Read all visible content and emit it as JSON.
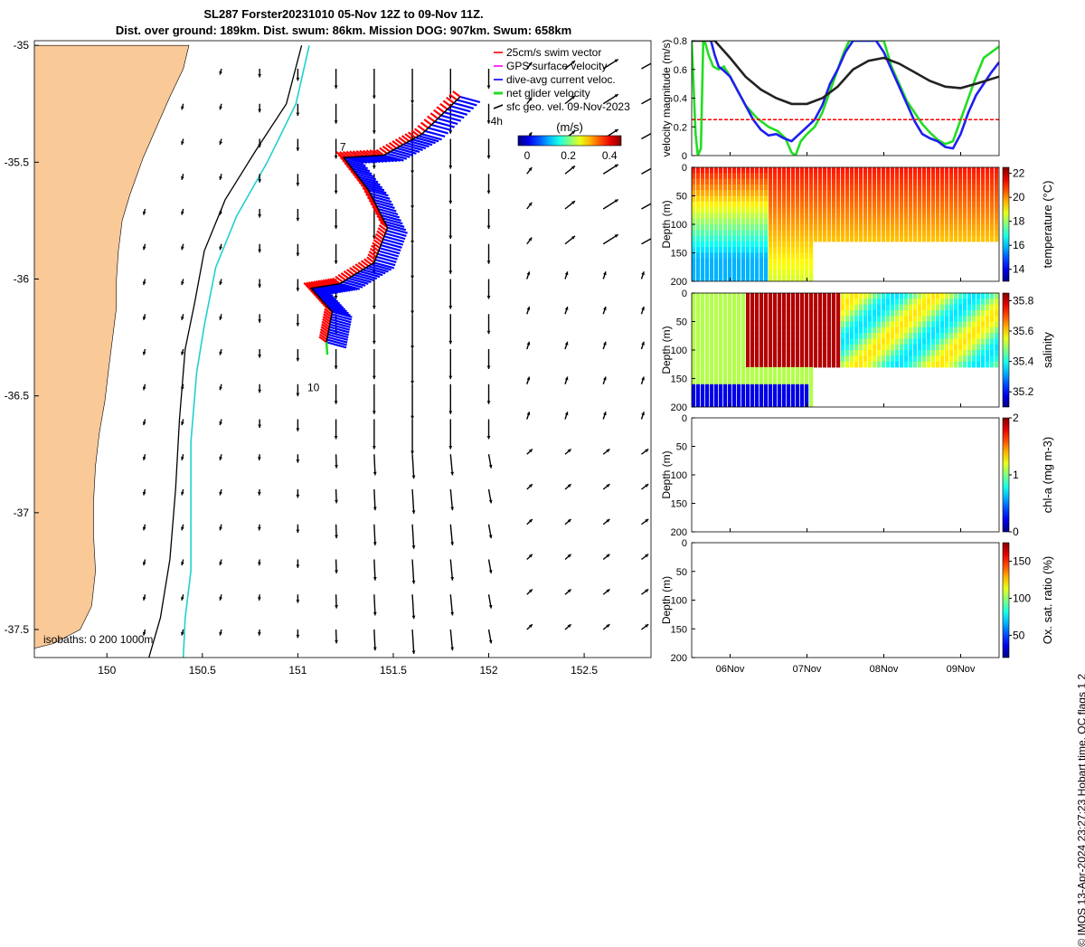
{
  "title_line1": "SL287 Forster20231010 05-Nov 12Z to 09-Nov 11Z.",
  "title_line2": "Dist. over ground: 189km. Dist. swum: 86km. Mission DOG: 907km. Swum: 658km",
  "credit": "© IMOS 13-Apr-2024 23:27:23 Hobart time. QC flags 1  2",
  "colors": {
    "land": "#f9c998",
    "track": "#1f1ff0",
    "swim": "#ff0000",
    "gps": "#ff00ff",
    "dive": "#0000ff",
    "net": "#22dd22",
    "geo": "#000000",
    "iso_200": "#000000",
    "iso_1000": "#22cfd0"
  },
  "chart_data": [
    {
      "type": "map",
      "xlabel": "",
      "ylabel": "",
      "xlim": [
        149.62,
        152.85
      ],
      "ylim": [
        -37.62,
        -34.98
      ],
      "x_ticks": [
        150,
        150.5,
        151,
        151.5,
        152,
        152.5
      ],
      "x_tick_labels": [
        "150",
        "150.5",
        "151",
        "151.5",
        "152",
        "152.5"
      ],
      "y_ticks": [
        -35,
        -35.5,
        -36,
        -36.5,
        -37,
        -37.5
      ],
      "y_tick_labels": [
        "-35",
        "-35.5",
        "-36",
        "-36.5",
        "-37",
        "-37.5"
      ],
      "legend": {
        "placement": "top-right",
        "entries": [
          "25cm/s swim vector",
          "GPS surface velocity",
          "dive-avg current veloc.",
          "net glider velocity",
          "sfc geo. vel. 09-Nov-2023"
        ]
      },
      "colorbar": {
        "label": "(m/s)",
        "ticks": [
          "0",
          "0.2",
          "0.4"
        ],
        "range": [
          0,
          0.5
        ]
      },
      "track_labels": [
        {
          "text": "4h",
          "lon": 152.01,
          "lat": -35.34
        },
        {
          "text": "7",
          "lon": 151.22,
          "lat": -35.45
        },
        {
          "text": "10",
          "lon": 151.05,
          "lat": -36.48
        }
      ],
      "isobaths_label": "isobaths: 0   200  1000m",
      "glider_track": [
        [
          151.85,
          -35.22
        ],
        [
          151.65,
          -35.38
        ],
        [
          151.45,
          -35.47
        ],
        [
          151.24,
          -35.48
        ],
        [
          151.37,
          -35.62
        ],
        [
          151.47,
          -35.78
        ],
        [
          151.4,
          -35.93
        ],
        [
          151.22,
          -36.02
        ],
        [
          151.07,
          -36.04
        ],
        [
          151.18,
          -36.14
        ],
        [
          151.15,
          -36.27
        ]
      ],
      "coastline": [
        [
          149.62,
          -35.0
        ],
        [
          150.43,
          -35.0
        ],
        [
          150.4,
          -35.1
        ],
        [
          150.33,
          -35.22
        ],
        [
          150.26,
          -35.35
        ],
        [
          150.19,
          -35.48
        ],
        [
          150.12,
          -35.64
        ],
        [
          150.08,
          -35.75
        ],
        [
          150.06,
          -35.88
        ],
        [
          150.05,
          -36.0
        ],
        [
          150.05,
          -36.12
        ],
        [
          150.03,
          -36.25
        ],
        [
          150.01,
          -36.38
        ],
        [
          149.99,
          -36.52
        ],
        [
          149.96,
          -36.66
        ],
        [
          149.94,
          -36.8
        ],
        [
          149.93,
          -36.95
        ],
        [
          149.93,
          -37.1
        ],
        [
          149.94,
          -37.25
        ],
        [
          149.92,
          -37.4
        ],
        [
          149.86,
          -37.5
        ],
        [
          149.72,
          -37.56
        ],
        [
          149.62,
          -37.58
        ]
      ],
      "isobath_200": [
        [
          151.02,
          -35.0
        ],
        [
          150.94,
          -35.25
        ],
        [
          150.78,
          -35.45
        ],
        [
          150.62,
          -35.66
        ],
        [
          150.51,
          -35.88
        ],
        [
          150.46,
          -36.1
        ],
        [
          150.41,
          -36.3
        ],
        [
          150.38,
          -36.6
        ],
        [
          150.36,
          -36.9
        ],
        [
          150.33,
          -37.2
        ],
        [
          150.28,
          -37.45
        ],
        [
          150.22,
          -37.62
        ]
      ],
      "isobath_1000": [
        [
          151.06,
          -35.0
        ],
        [
          150.99,
          -35.25
        ],
        [
          150.84,
          -35.5
        ],
        [
          150.68,
          -35.73
        ],
        [
          150.57,
          -35.95
        ],
        [
          150.51,
          -36.2
        ],
        [
          150.47,
          -36.4
        ],
        [
          150.44,
          -36.7
        ],
        [
          150.44,
          -37.0
        ],
        [
          150.44,
          -37.25
        ],
        [
          150.41,
          -37.45
        ],
        [
          150.4,
          -37.62
        ]
      ],
      "geo_velocity_grid": {
        "lon": [
          150.2,
          150.4,
          150.6,
          150.8,
          151.0,
          151.2,
          151.4,
          151.6,
          151.8,
          152.0,
          152.2,
          152.4,
          152.6,
          152.8
        ],
        "lat": [
          -35.1,
          -35.25,
          -35.4,
          -35.55,
          -35.7,
          -35.85,
          -36.0,
          -36.15,
          -36.3,
          -36.45,
          -36.6,
          -36.75,
          -36.9,
          -37.05,
          -37.2,
          -37.35,
          -37.5
        ],
        "note_units": "m/s"
      }
    },
    {
      "type": "line",
      "ylabel": "velocity magnitude (m/s)",
      "ylim": [
        0,
        0.8
      ],
      "y_ticks": [
        0,
        0.2,
        0.4,
        0.6,
        0.8
      ],
      "x_ticks": [
        "06Nov",
        "07Nov",
        "08Nov",
        "09Nov"
      ],
      "series": [
        {
          "name": "net glider velocity",
          "color": "#22dd22",
          "x": [
            5.5,
            5.55,
            5.58,
            5.62,
            5.65,
            5.68,
            5.72,
            5.78,
            5.85,
            5.92,
            6.0,
            6.1,
            6.2,
            6.35,
            6.5,
            6.62,
            6.72,
            6.8,
            6.85,
            6.92,
            7.0,
            7.1,
            7.2,
            7.3,
            7.4,
            7.48,
            7.55,
            7.62,
            7.7,
            7.8,
            7.9,
            8.0,
            8.1,
            8.2,
            8.3,
            8.4,
            8.5,
            8.6,
            8.7,
            8.8,
            8.9,
            9.0,
            9.1,
            9.2,
            9.3,
            9.4,
            9.5
          ],
          "values": [
            0.8,
            0.15,
            0.0,
            0.05,
            0.8,
            0.78,
            0.7,
            0.62,
            0.6,
            0.62,
            0.55,
            0.45,
            0.35,
            0.26,
            0.2,
            0.17,
            0.12,
            0.02,
            0.0,
            0.1,
            0.15,
            0.2,
            0.3,
            0.45,
            0.6,
            0.72,
            0.8,
            0.8,
            0.8,
            0.8,
            0.8,
            0.8,
            0.62,
            0.5,
            0.38,
            0.3,
            0.22,
            0.16,
            0.11,
            0.08,
            0.1,
            0.25,
            0.4,
            0.55,
            0.68,
            0.72,
            0.76
          ]
        },
        {
          "name": "dive-avg current veloc.",
          "color": "#1f1ff0",
          "x": [
            5.75,
            5.8,
            5.85,
            5.9,
            6.0,
            6.1,
            6.2,
            6.3,
            6.4,
            6.5,
            6.6,
            6.7,
            6.8,
            6.9,
            7.0,
            7.1,
            7.2,
            7.3,
            7.4,
            7.5,
            7.6,
            7.7,
            7.8,
            7.9,
            8.0,
            8.1,
            8.2,
            8.3,
            8.4,
            8.5,
            8.6,
            8.7,
            8.8,
            8.9,
            9.0,
            9.1,
            9.2,
            9.3,
            9.4,
            9.5
          ],
          "values": [
            0.8,
            0.7,
            0.62,
            0.6,
            0.55,
            0.45,
            0.35,
            0.25,
            0.18,
            0.14,
            0.15,
            0.12,
            0.1,
            0.15,
            0.2,
            0.25,
            0.35,
            0.5,
            0.6,
            0.72,
            0.8,
            0.8,
            0.8,
            0.8,
            0.72,
            0.6,
            0.48,
            0.36,
            0.24,
            0.15,
            0.12,
            0.1,
            0.06,
            0.05,
            0.15,
            0.3,
            0.42,
            0.5,
            0.58,
            0.65
          ]
        },
        {
          "name": "surface speed",
          "color": "#222222",
          "x": [
            5.5,
            5.8,
            6.0,
            6.2,
            6.4,
            6.6,
            6.8,
            7.0,
            7.2,
            7.4,
            7.6,
            7.8,
            8.0,
            8.2,
            8.4,
            8.6,
            8.8,
            9.0,
            9.2,
            9.5
          ],
          "values": [
            0.8,
            0.8,
            0.68,
            0.55,
            0.46,
            0.4,
            0.36,
            0.36,
            0.4,
            0.48,
            0.6,
            0.66,
            0.68,
            0.64,
            0.58,
            0.52,
            0.48,
            0.47,
            0.5,
            0.55
          ]
        },
        {
          "name": "25cm/s swim vector",
          "color": "#ff0000",
          "x": [
            5.5,
            9.5
          ],
          "values": [
            0.25,
            0.25
          ]
        }
      ]
    },
    {
      "type": "heatmap",
      "ylabel": "Depth (m)",
      "ylim": [
        0,
        200
      ],
      "y_ticks": [
        0,
        50,
        100,
        150,
        200
      ],
      "colorbar_label": "temperature (°C)",
      "colorbar_ticks": [
        14,
        16,
        18,
        20,
        22
      ],
      "colorbar_range": [
        13,
        22.5
      ]
    },
    {
      "type": "heatmap",
      "ylabel": "Depth (m)",
      "ylim": [
        0,
        200
      ],
      "y_ticks": [
        0,
        50,
        100,
        150,
        200
      ],
      "colorbar_label": "salinity",
      "colorbar_ticks": [
        35.2,
        35.4,
        35.6,
        35.8
      ],
      "colorbar_range": [
        35.1,
        35.85
      ]
    },
    {
      "type": "heatmap",
      "ylabel": "Depth (m)",
      "ylim": [
        0,
        200
      ],
      "y_ticks": [
        0,
        50,
        100,
        150,
        200
      ],
      "colorbar_label": "chl-a (mg m-3)",
      "colorbar_ticks": [
        0,
        1,
        2
      ],
      "colorbar_range": [
        0,
        2
      ]
    },
    {
      "type": "heatmap",
      "ylabel": "Depth (m)",
      "ylim": [
        0,
        200
      ],
      "y_ticks": [
        0,
        50,
        100,
        150,
        200
      ],
      "colorbar_label": "Ox. sat. ratio (%)",
      "colorbar_ticks": [
        50,
        100,
        150
      ],
      "colorbar_range": [
        20,
        175
      ],
      "x_ticks": [
        "06Nov",
        "07Nov",
        "08Nov",
        "09Nov"
      ]
    }
  ]
}
